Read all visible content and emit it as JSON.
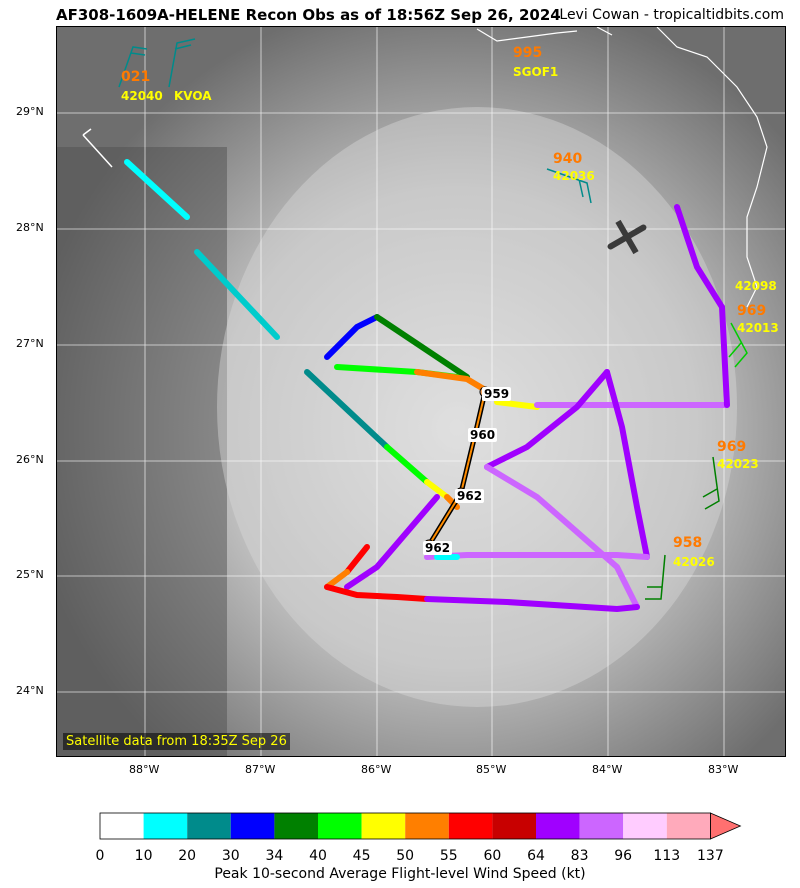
{
  "header": {
    "title": "AF308-1609A-HELENE Recon Obs as of 18:56Z Sep 26, 2024",
    "credit": "Levi Cowan - tropicaltidbits.com"
  },
  "map": {
    "lon_ticks": [
      "88°W",
      "87°W",
      "86°W",
      "85°W",
      "84°W",
      "83°W"
    ],
    "lat_ticks": [
      "29°N",
      "28°N",
      "27°N",
      "26°N",
      "25°N",
      "24°N"
    ],
    "satellite_note": "Satellite data from 18:35Z Sep 26",
    "stations": [
      {
        "pressure": "021",
        "id": "42040"
      },
      {
        "pressure": "",
        "id": "KVOA"
      },
      {
        "pressure": "995",
        "id": "SGOF1"
      },
      {
        "pressure": "940",
        "id": "42036"
      },
      {
        "pressure": "",
        "id": "42098"
      },
      {
        "pressure": "969",
        "id": "42013"
      },
      {
        "pressure": "969",
        "id": "42023"
      },
      {
        "pressure": "958",
        "id": "42026"
      }
    ],
    "center_fixes": [
      {
        "label": "959"
      },
      {
        "label": "960"
      },
      {
        "label": "962"
      },
      {
        "label": "962"
      }
    ]
  },
  "colorbar": {
    "title": "Peak 10-second Average Flight-level Wind Speed (kt)",
    "ticks": [
      "0",
      "10",
      "20",
      "30",
      "34",
      "40",
      "45",
      "50",
      "55",
      "60",
      "64",
      "83",
      "96",
      "113",
      "137"
    ],
    "colors": [
      "#ffffff",
      "#00ffff",
      "#008b8b",
      "#0000ff",
      "#008000",
      "#00ff00",
      "#ffff00",
      "#ff7f00",
      "#ff0000",
      "#c80000",
      "#a000ff",
      "#cc66ff",
      "#ffccff",
      "#ffaabb"
    ],
    "extend_color": "#ff7070"
  }
}
